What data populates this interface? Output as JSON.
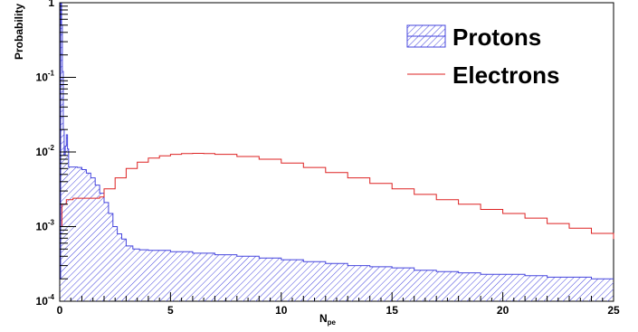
{
  "chart_data": {
    "type": "line",
    "title": "",
    "xlabel": "N",
    "xlabel_sub": "pe",
    "ylabel": "Probability",
    "xlim": [
      0,
      25
    ],
    "ylim": [
      0.0001,
      1
    ],
    "yscale": "log",
    "x_ticks": [
      {
        "value": 0,
        "label": "0"
      },
      {
        "value": 5,
        "label": "5"
      },
      {
        "value": 10,
        "label": "10"
      },
      {
        "value": 15,
        "label": "15"
      },
      {
        "value": 20,
        "label": "20"
      },
      {
        "value": 25,
        "label": "25"
      }
    ],
    "y_ticks": [
      {
        "value": 1,
        "base": "1",
        "exp": ""
      },
      {
        "value": 0.1,
        "base": "10",
        "exp": "-1"
      },
      {
        "value": 0.01,
        "base": "10",
        "exp": "-2"
      },
      {
        "value": 0.001,
        "base": "10",
        "exp": "-3"
      },
      {
        "value": 0.0001,
        "base": "10",
        "exp": "-4"
      }
    ],
    "legend_position": "top-right",
    "series": [
      {
        "name": "Protons",
        "color": "#4444dd",
        "style": "hatched-fill",
        "points": [
          [
            0.0,
            0.0002
          ],
          [
            0.04,
            0.98
          ],
          [
            0.08,
            0.5
          ],
          [
            0.12,
            0.12
          ],
          [
            0.16,
            0.02
          ],
          [
            0.2,
            0.009
          ],
          [
            0.25,
            0.012
          ],
          [
            0.3,
            0.017
          ],
          [
            0.35,
            0.011
          ],
          [
            0.4,
            0.0063
          ],
          [
            0.6,
            0.0063
          ],
          [
            0.8,
            0.0062
          ],
          [
            1.0,
            0.0058
          ],
          [
            1.2,
            0.0052
          ],
          [
            1.4,
            0.0045
          ],
          [
            1.6,
            0.0036
          ],
          [
            1.8,
            0.0028
          ],
          [
            2.0,
            0.0021
          ],
          [
            2.2,
            0.0015
          ],
          [
            2.4,
            0.001
          ],
          [
            2.6,
            0.0008
          ],
          [
            2.8,
            0.00068
          ],
          [
            3.0,
            0.00055
          ],
          [
            3.3,
            0.0005
          ],
          [
            3.6,
            0.00049
          ],
          [
            4.0,
            0.00048
          ],
          [
            5.0,
            0.00046
          ],
          [
            6.0,
            0.00044
          ],
          [
            7.0,
            0.00042
          ],
          [
            8.0,
            0.0004
          ],
          [
            9.0,
            0.00038
          ],
          [
            10.0,
            0.00036
          ],
          [
            11.0,
            0.00034
          ],
          [
            12.0,
            0.00032
          ],
          [
            13.0,
            0.0003
          ],
          [
            14.0,
            0.00029
          ],
          [
            15.0,
            0.00028
          ],
          [
            16.0,
            0.00026
          ],
          [
            17.0,
            0.00025
          ],
          [
            18.0,
            0.00024
          ],
          [
            19.0,
            0.00023
          ],
          [
            20.0,
            0.00023
          ],
          [
            21.0,
            0.00022
          ],
          [
            22.0,
            0.00021
          ],
          [
            23.0,
            0.00021
          ],
          [
            24.0,
            0.0002
          ],
          [
            25.0,
            0.0002
          ]
        ]
      },
      {
        "name": "Electrons",
        "color": "#dd2222",
        "style": "line",
        "points": [
          [
            0.0,
            0.001
          ],
          [
            0.1,
            0.002
          ],
          [
            0.3,
            0.0023
          ],
          [
            0.6,
            0.0024
          ],
          [
            1.0,
            0.0024
          ],
          [
            1.5,
            0.0024
          ],
          [
            1.8,
            0.0025
          ],
          [
            2.0,
            0.0032
          ],
          [
            2.5,
            0.0045
          ],
          [
            3.0,
            0.006
          ],
          [
            3.5,
            0.0073
          ],
          [
            4.0,
            0.0083
          ],
          [
            4.5,
            0.0089
          ],
          [
            5.0,
            0.0093
          ],
          [
            5.5,
            0.0095
          ],
          [
            6.0,
            0.0096
          ],
          [
            6.5,
            0.0095
          ],
          [
            7.0,
            0.0093
          ],
          [
            8.0,
            0.0087
          ],
          [
            9.0,
            0.008
          ],
          [
            10.0,
            0.0071
          ],
          [
            11.0,
            0.0062
          ],
          [
            12.0,
            0.0053
          ],
          [
            13.0,
            0.0045
          ],
          [
            14.0,
            0.0038
          ],
          [
            15.0,
            0.0032
          ],
          [
            16.0,
            0.0027
          ],
          [
            17.0,
            0.0023
          ],
          [
            18.0,
            0.002
          ],
          [
            19.0,
            0.0017
          ],
          [
            20.0,
            0.0015
          ],
          [
            21.0,
            0.0013
          ],
          [
            22.0,
            0.0011
          ],
          [
            23.0,
            0.00095
          ],
          [
            24.0,
            0.00081
          ],
          [
            25.0,
            0.00068
          ]
        ]
      }
    ]
  }
}
